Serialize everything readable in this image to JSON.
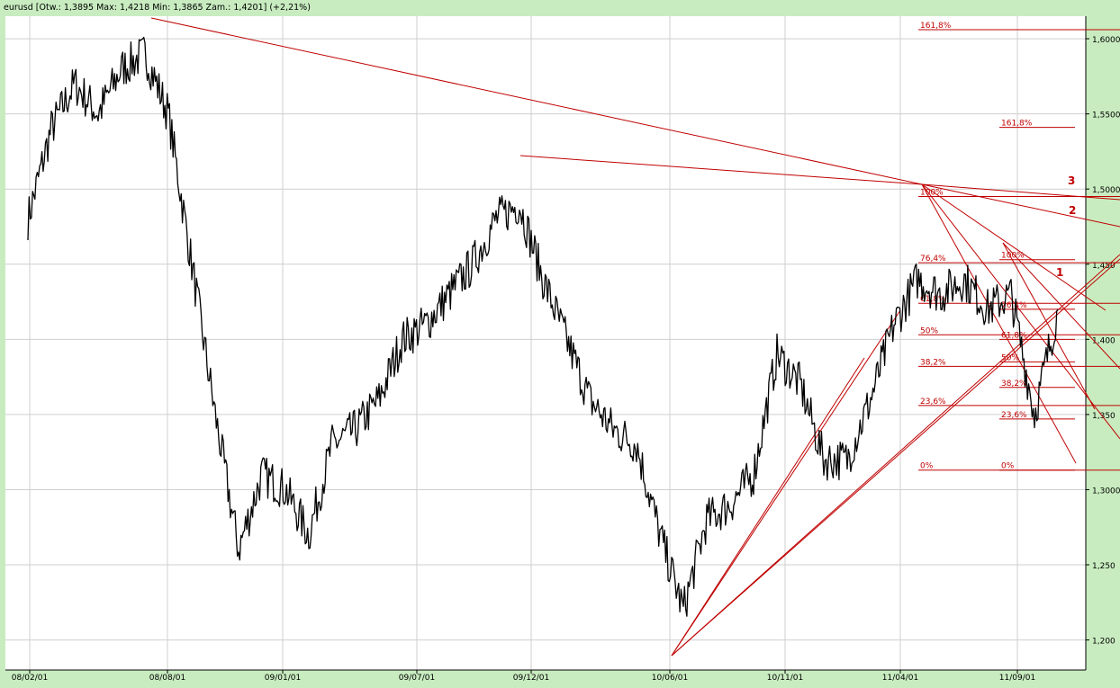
{
  "header": {
    "text": "eurusd [Otw.: 1,3895  Max: 1,4218  Min: 1,3865  Zam.: 1,4201] (+2,21%)"
  },
  "colors": {
    "background": "#c8ecc0",
    "plot_background": "#ffffff",
    "grid": "#cfcfcf",
    "price": "#000000",
    "annotation": "#c00000"
  },
  "chart_data": {
    "type": "line",
    "title": "",
    "xlabel": "",
    "ylabel": "",
    "x_tick_labels": [
      "08/02/01",
      "08/08/01",
      "09/01/01",
      "09/07/01",
      "09/12/01",
      "10/06/01",
      "10/11/01",
      "11/04/01",
      "11/09/01"
    ],
    "y_tick_labels": [
      "1,200",
      "1,250",
      "1,3000",
      "1,350",
      "1,400",
      "1,450",
      "1,5000",
      "1,5500",
      "1,6000"
    ],
    "y_ticks": [
      1.2,
      1.25,
      1.3,
      1.35,
      1.4,
      1.45,
      1.5,
      1.55,
      1.6
    ],
    "ylim": [
      1.18,
      1.615
    ],
    "grid": true,
    "series": [
      {
        "x": [
          "2008-02",
          "2008-03",
          "2008-04",
          "2008-05",
          "2008-06",
          "2008-07",
          "2008-08",
          "2008-09",
          "2008-10",
          "2008-11",
          "2008-12",
          "2009-01",
          "2009-02",
          "2009-03",
          "2009-04",
          "2009-05",
          "2009-06",
          "2009-07",
          "2009-08",
          "2009-09",
          "2009-10",
          "2009-11",
          "2009-12",
          "2010-01",
          "2010-02",
          "2010-03",
          "2010-04",
          "2010-05",
          "2010-06",
          "2010-07",
          "2010-08",
          "2010-09",
          "2010-10",
          "2010-11",
          "2010-12",
          "2011-01",
          "2011-02",
          "2011-03",
          "2011-04",
          "2011-05",
          "2011-06",
          "2011-07",
          "2011-08",
          "2011-09",
          "2011-10"
        ],
        "values": [
          1.48,
          1.54,
          1.57,
          1.55,
          1.58,
          1.59,
          1.55,
          1.45,
          1.35,
          1.26,
          1.31,
          1.3,
          1.27,
          1.33,
          1.34,
          1.36,
          1.4,
          1.41,
          1.43,
          1.45,
          1.48,
          1.49,
          1.44,
          1.4,
          1.36,
          1.34,
          1.33,
          1.27,
          1.22,
          1.28,
          1.29,
          1.31,
          1.39,
          1.37,
          1.32,
          1.32,
          1.36,
          1.41,
          1.44,
          1.43,
          1.44,
          1.42,
          1.43,
          1.35,
          1.42
        ]
      }
    ],
    "annotations": {
      "fib_set_a": [
        {
          "label": "161,8%",
          "value": 1.606
        },
        {
          "label": "100%",
          "value": 1.495
        },
        {
          "label": "76,4%",
          "value": 1.451
        },
        {
          "label": "61,8%",
          "value": 1.424
        },
        {
          "label": "50%",
          "value": 1.403
        },
        {
          "label": "38,2%",
          "value": 1.382
        },
        {
          "label": "23,6%",
          "value": 1.356
        },
        {
          "label": "0%",
          "value": 1.313
        }
      ],
      "fib_set_b": [
        {
          "label": "161,8%",
          "value": 1.541
        },
        {
          "label": "100%",
          "value": 1.453
        },
        {
          "label": "76,4%",
          "value": 1.42
        },
        {
          "label": "61,8%",
          "value": 1.4
        },
        {
          "label": "50%",
          "value": 1.385
        },
        {
          "label": "38,2%",
          "value": 1.368
        },
        {
          "label": "23,6%",
          "value": 1.347
        },
        {
          "label": "0%",
          "value": 1.313
        }
      ],
      "fan_labels": [
        "3",
        "2",
        "1"
      ]
    }
  }
}
